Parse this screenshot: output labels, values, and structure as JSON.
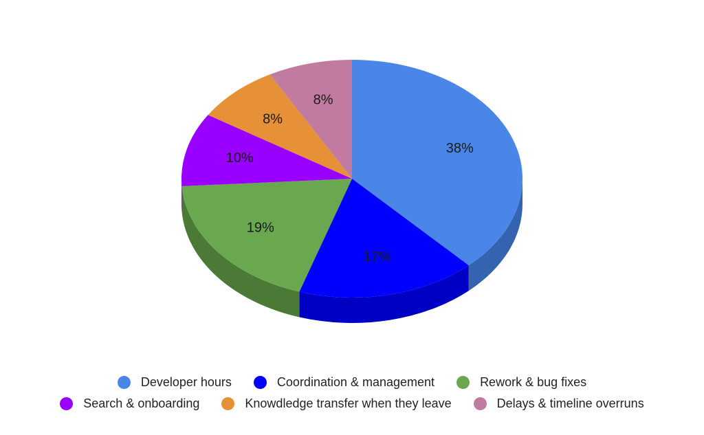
{
  "chart_data": {
    "type": "pie",
    "three_d": true,
    "title": "",
    "legend_position": "bottom",
    "categories": [
      "Developer hours",
      "Coordination & management",
      "Rework & bug fixes",
      "Search & onboarding",
      "Knowdledge transfer when they leave",
      "Delays & timeline overruns"
    ],
    "values": [
      38,
      17,
      19,
      10,
      8,
      8
    ],
    "labels": [
      "38%",
      "17%",
      "19%",
      "10%",
      "8%",
      "8%"
    ],
    "colors": [
      "#4a86e8",
      "#0000ff",
      "#6aa84f",
      "#9900ff",
      "#e69138",
      "#c27ba0"
    ],
    "side_colors": [
      "#3563b0",
      "#0000c4",
      "#4a7a36",
      "#7300bf",
      "#b06d28",
      "#935c79"
    ]
  }
}
